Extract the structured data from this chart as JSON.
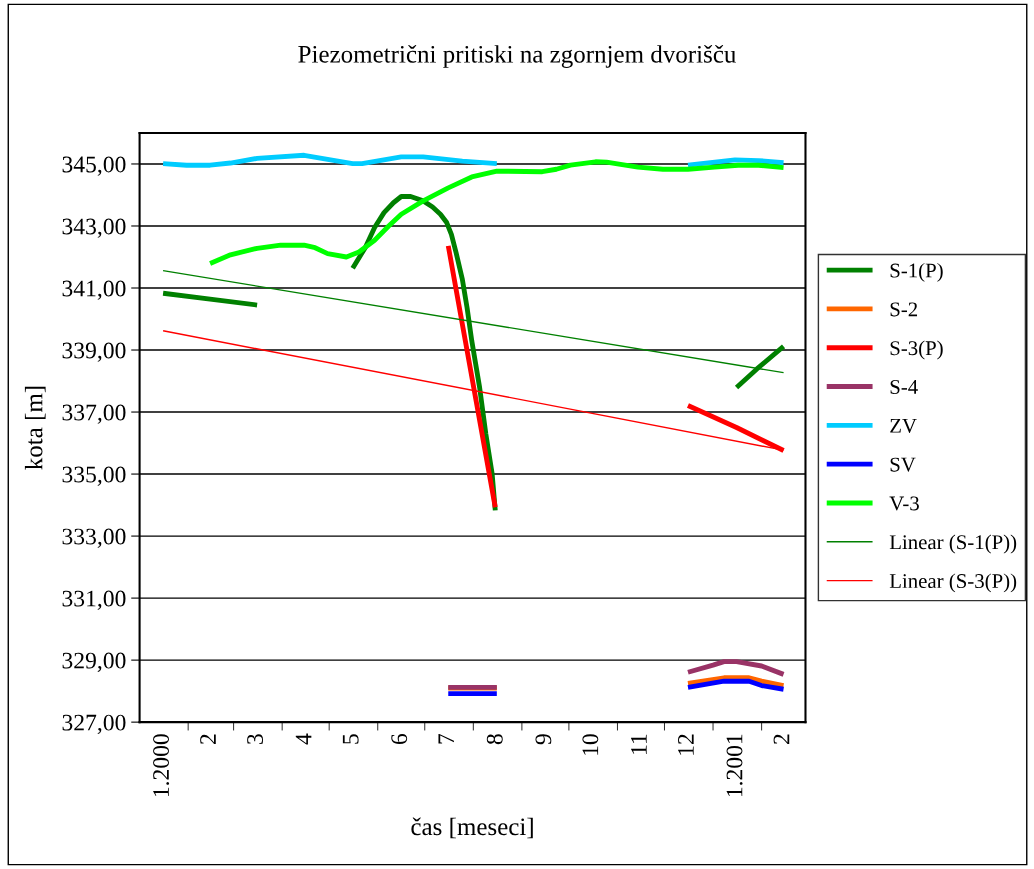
{
  "chart_data": {
    "type": "line",
    "title": "Piezometrični pritiski na zgornjem dvorišču",
    "xlabel": "čas [meseci]",
    "ylabel": "kota [m]",
    "xlim": [
      "2000-01-01",
      "2001-03-01"
    ],
    "ylim": [
      327,
      346
    ],
    "xticks": [
      {
        "value": "2000-01-16",
        "label": "1.2000"
      },
      {
        "value": "2000-02-15",
        "label": "2"
      },
      {
        "value": "2000-03-16",
        "label": "3"
      },
      {
        "value": "2000-04-16",
        "label": "4"
      },
      {
        "value": "2000-05-16",
        "label": "5"
      },
      {
        "value": "2000-06-16",
        "label": "6"
      },
      {
        "value": "2000-07-16",
        "label": "7"
      },
      {
        "value": "2000-08-16",
        "label": "8"
      },
      {
        "value": "2000-09-16",
        "label": "9"
      },
      {
        "value": "2000-10-16",
        "label": "10"
      },
      {
        "value": "2000-11-16",
        "label": "11"
      },
      {
        "value": "2000-12-16",
        "label": "12"
      },
      {
        "value": "2001-01-16",
        "label": "1.2001"
      },
      {
        "value": "2001-02-15",
        "label": "2"
      },
      {
        "value": "2000-02-01",
        "label": null
      },
      {
        "value": "2000-03-01",
        "label": null
      },
      {
        "value": "2000-04-01",
        "label": null
      },
      {
        "value": "2000-05-01",
        "label": null
      },
      {
        "value": "2000-06-01",
        "label": null
      },
      {
        "value": "2000-07-01",
        "label": null
      },
      {
        "value": "2000-08-01",
        "label": null
      },
      {
        "value": "2000-09-01",
        "label": null
      },
      {
        "value": "2000-10-01",
        "label": null
      },
      {
        "value": "2000-11-01",
        "label": null
      },
      {
        "value": "2000-12-01",
        "label": null
      },
      {
        "value": "2001-01-01",
        "label": null
      },
      {
        "value": "2001-02-01",
        "label": null
      }
    ],
    "yticks": [
      {
        "value": 327,
        "label": "327,00"
      },
      {
        "value": 329,
        "label": "329,00"
      },
      {
        "value": 331,
        "label": "331,00"
      },
      {
        "value": 333,
        "label": "333,00"
      },
      {
        "value": 335,
        "label": "335,00"
      },
      {
        "value": 337,
        "label": "337,00"
      },
      {
        "value": 339,
        "label": "339,00"
      },
      {
        "value": 341,
        "label": "341,00"
      },
      {
        "value": 343,
        "label": "343,00"
      },
      {
        "value": 345,
        "label": "345,00"
      }
    ],
    "grid": "y",
    "legend": "right",
    "marker": "none",
    "line_style": "solid",
    "series": [
      {
        "name": "S-1(P)",
        "color": "#008000",
        "x": [
          "2000-01-16",
          "2000-02-15",
          "2000-03-16",
          "2000-04-16",
          "2000-05-16",
          "2000-05-24",
          "2000-05-30",
          "2000-06-05",
          "2000-06-11",
          "2000-06-16",
          "2000-06-22",
          "2000-06-30",
          "2000-07-06",
          "2000-07-11",
          "2000-07-15",
          "2000-07-18",
          "2000-07-21",
          "2000-07-25",
          "2000-07-28",
          "2000-07-31",
          "2000-08-05",
          "2000-08-09",
          "2000-08-13",
          "2000-08-15",
          "2000-10-16",
          "2001-01-16",
          "2001-01-29",
          "2001-02-15"
        ],
        "values": [
          340.83,
          340.64,
          340.45,
          null,
          341.64,
          342.3,
          342.95,
          343.43,
          343.75,
          343.95,
          343.95,
          343.81,
          343.61,
          343.38,
          343.11,
          342.73,
          342.14,
          341.28,
          340.37,
          339.3,
          337.8,
          336.29,
          335.01,
          333.83,
          null,
          337.79,
          338.39,
          339.12
        ]
      },
      {
        "name": "S-2",
        "color": "#ff6600",
        "x": [
          "2000-07-16",
          "2000-08-16",
          "2000-10-16",
          "2000-12-16",
          "2001-01-08",
          "2001-01-24",
          "2001-02-01",
          "2001-02-15"
        ],
        "values": [
          328.1,
          328.1,
          null,
          328.25,
          328.43,
          328.43,
          328.32,
          328.18
        ]
      },
      {
        "name": "S-3(P)",
        "color": "#ff0000",
        "x": [
          "2000-07-16",
          "2000-08-15",
          "2000-10-16",
          "2000-12-16",
          "2001-01-16",
          "2001-02-15"
        ],
        "values": [
          342.36,
          333.93,
          null,
          337.21,
          336.5,
          335.76
        ]
      },
      {
        "name": "S-4",
        "color": "#993366",
        "x": [
          "2000-07-16",
          "2000-08-16",
          "2000-10-16",
          "2000-12-16",
          "2001-01-01",
          "2001-01-08",
          "2001-01-16",
          "2001-02-01",
          "2001-02-15"
        ],
        "values": [
          328.12,
          328.12,
          null,
          328.61,
          328.84,
          328.95,
          328.95,
          328.81,
          328.54
        ]
      },
      {
        "name": "ZV",
        "color": "#00ccff",
        "x": [
          "2000-01-16",
          "2000-01-31",
          "2000-02-15",
          "2000-02-28",
          "2000-03-16",
          "2000-04-15",
          "2000-05-16",
          "2000-05-22",
          "2000-06-16",
          "2000-06-30",
          "2000-07-25",
          "2000-08-16",
          "2000-10-16",
          "2000-12-16",
          "2001-01-15",
          "2001-01-30",
          "2001-02-15"
        ],
        "values": [
          345.01,
          344.96,
          344.96,
          345.03,
          345.18,
          345.28,
          345.01,
          345.01,
          345.23,
          345.23,
          345.09,
          345.01,
          null,
          344.96,
          345.13,
          345.11,
          345.04
        ]
      },
      {
        "name": "SV",
        "color": "#0000ff",
        "x": [
          "2000-07-16",
          "2000-08-16",
          "2000-10-16",
          "2000-12-16",
          "2001-01-08",
          "2001-01-24",
          "2001-02-01",
          "2001-02-15"
        ],
        "values": [
          327.92,
          327.92,
          null,
          328.12,
          328.32,
          328.32,
          328.18,
          328.06
        ]
      },
      {
        "name": "V-3",
        "color": "#00ff00",
        "x": [
          "2000-02-15",
          "2000-02-28",
          "2000-03-16",
          "2000-03-31",
          "2000-04-15",
          "2000-04-22",
          "2000-04-30",
          "2000-05-12",
          "2000-05-20",
          "2000-05-30",
          "2000-06-08",
          "2000-06-16",
          "2000-06-30",
          "2000-07-16",
          "2000-07-31",
          "2000-08-16",
          "2000-09-14",
          "2000-09-23",
          "2000-10-02",
          "2000-10-18",
          "2000-10-25",
          "2000-11-14",
          "2000-11-30",
          "2000-12-16",
          "2001-01-02",
          "2001-01-17",
          "2001-01-30",
          "2001-02-15"
        ],
        "values": [
          341.79,
          342.07,
          342.28,
          342.38,
          342.38,
          342.3,
          342.11,
          342.0,
          342.16,
          342.54,
          343.0,
          343.38,
          343.81,
          344.23,
          344.58,
          344.77,
          344.75,
          344.83,
          344.96,
          345.07,
          345.06,
          344.9,
          344.83,
          344.83,
          344.9,
          344.96,
          344.96,
          344.88
        ]
      },
      {
        "name": "Linear (S-1(P))",
        "color": "#008000",
        "x": [
          "2000-01-16",
          "2001-02-15"
        ],
        "values": [
          341.56,
          338.27
        ]
      },
      {
        "name": "Linear (S-3(P))",
        "color": "#ff0000",
        "x": [
          "2000-01-16",
          "2001-02-15"
        ],
        "values": [
          339.62,
          335.77
        ]
      }
    ]
  }
}
